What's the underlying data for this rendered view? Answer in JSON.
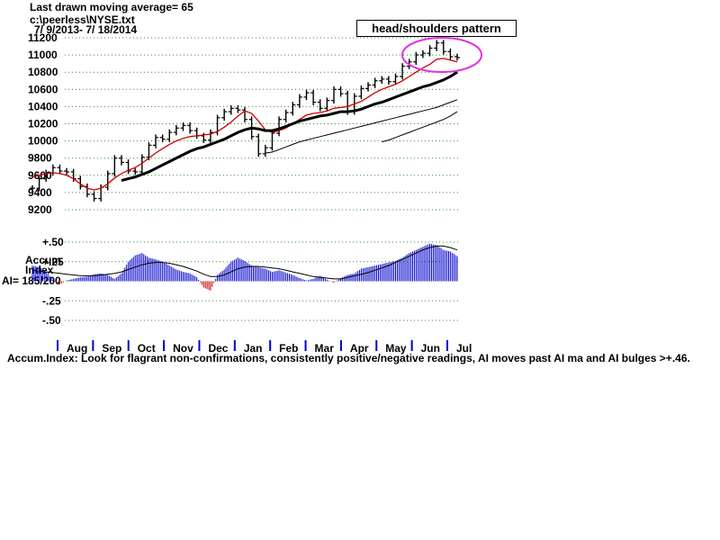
{
  "header": {
    "line1": "Last drawn moving average= 65",
    "line2": "c:\\peerless\\NYSE.txt",
    "line3": "7/ 9/2013- 7/ 18/2014"
  },
  "annotation": {
    "label": "head/shoulders pattern"
  },
  "footer": {
    "text": "Accum.Index: Look for flagrant non-confirmations, consistently positive/negative readings, AI moves past AI ma and AI bulges >+.46."
  },
  "price_chart": {
    "y_ticks": [
      "11200",
      "11000",
      "10800",
      "10600",
      "10400",
      "10200",
      "10000",
      "9800",
      "9600",
      "9400",
      "9200"
    ]
  },
  "accum_panel": {
    "label_line1": "Accum",
    "label_line2": "Index",
    "label_line3": "AI= 185/200",
    "y_ticks": [
      "+.50",
      "+.25",
      "-.25",
      "-.50"
    ]
  },
  "months": [
    "Aug",
    "Sep",
    "Oct",
    "Nov",
    "Dec",
    "Jan",
    "Feb",
    "Mar",
    "Apr",
    "May",
    "Jun",
    "Jul"
  ],
  "colors": {
    "price_bars": "#000000",
    "ma_short": "#cc0000",
    "ma_long": "#000000",
    "grid": "#2f8f2f",
    "accum_positive": "#0000cc",
    "accum_negative": "#cc0000",
    "highlight_ellipse": "#dd33dd"
  },
  "chart_data": [
    {
      "type": "line",
      "title": "",
      "ylim": [
        9200,
        11200
      ],
      "x_months": [
        "Aug",
        "Sep",
        "Oct",
        "Nov",
        "Dec",
        "Jan",
        "Feb",
        "Mar",
        "Apr",
        "May",
        "Jun",
        "Jul"
      ],
      "series": [
        {
          "values_by_week": [
            9450,
            9560,
            9630,
            9690,
            9650,
            9640,
            9560,
            9470,
            9380,
            9330,
            9460,
            9620,
            9800,
            9750,
            9650,
            9640,
            9810,
            9950,
            10040,
            10020,
            10100,
            10150,
            10180,
            10120,
            10060,
            10010,
            10100,
            10270,
            10340,
            10380,
            10360,
            10250,
            10050,
            9850,
            9920,
            10090,
            10250,
            10330,
            10420,
            10510,
            10560,
            10450,
            10380,
            10470,
            10600,
            10550,
            10340,
            10520,
            10610,
            10650,
            10700,
            10720,
            10690,
            10750,
            10870,
            10920,
            11000,
            11020,
            11080,
            11140,
            11040,
            10980,
            10970
          ]
        },
        {
          "values_by_week": [
            9580,
            9600,
            9620,
            9630,
            9620,
            9600,
            9560,
            9500,
            9450,
            9430,
            9450,
            9500,
            9570,
            9620,
            9660,
            9690,
            9740,
            9800,
            9860,
            9910,
            9960,
            10000,
            10030,
            10050,
            10060,
            10070,
            10080,
            10110,
            10160,
            10220,
            10290,
            10350,
            10320,
            10230,
            10130,
            10100,
            10120,
            10150,
            10200,
            10250,
            10300,
            10320,
            10330,
            10350,
            10380,
            10390,
            10400,
            10430,
            10460,
            10510,
            10560,
            10600,
            10630,
            10660,
            10700,
            10750,
            10800,
            10850,
            10890,
            10950,
            10960,
            10940,
            10920
          ]
        },
        {
          "values_by_week": [
            null,
            null,
            null,
            null,
            null,
            null,
            null,
            null,
            null,
            null,
            null,
            null,
            null,
            9540,
            9560,
            9580,
            9610,
            9640,
            9680,
            9720,
            9760,
            9800,
            9840,
            9880,
            9910,
            9930,
            9960,
            9990,
            10020,
            10060,
            10100,
            10130,
            10150,
            10140,
            10120,
            10120,
            10140,
            10170,
            10200,
            10230,
            10250,
            10270,
            10290,
            10300,
            10320,
            10340,
            10340,
            10350,
            10370,
            10400,
            10430,
            10450,
            10480,
            10510,
            10540,
            10570,
            10600,
            10630,
            10650,
            10680,
            10710,
            10750,
            10800
          ]
        },
        {
          "values_by_week": [
            null,
            null,
            null,
            null,
            null,
            null,
            null,
            null,
            null,
            null,
            null,
            null,
            null,
            null,
            null,
            null,
            null,
            null,
            null,
            null,
            null,
            null,
            null,
            null,
            null,
            null,
            null,
            null,
            null,
            null,
            null,
            null,
            null,
            null,
            9860,
            9870,
            9900,
            9930,
            9960,
            9990,
            10010,
            10030,
            10050,
            10070,
            10090,
            10110,
            10130,
            10150,
            10170,
            10190,
            10210,
            10230,
            10250,
            10270,
            10290,
            10310,
            10330,
            10350,
            10370,
            10390,
            10420,
            10450,
            10480
          ]
        },
        {
          "values_by_week": [
            null,
            null,
            null,
            null,
            null,
            null,
            null,
            null,
            null,
            null,
            null,
            null,
            null,
            null,
            null,
            null,
            null,
            null,
            null,
            null,
            null,
            null,
            null,
            null,
            null,
            null,
            null,
            null,
            null,
            null,
            null,
            null,
            null,
            null,
            null,
            null,
            null,
            null,
            null,
            null,
            null,
            null,
            null,
            null,
            null,
            null,
            null,
            null,
            null,
            null,
            null,
            9990,
            10010,
            10040,
            10070,
            10100,
            10130,
            10160,
            10190,
            10220,
            10250,
            10290,
            10340
          ]
        }
      ]
    },
    {
      "type": "bar",
      "title": "",
      "ylim": [
        -0.5,
        0.5
      ],
      "x_months": [
        "Aug",
        "Sep",
        "Oct",
        "Nov",
        "Dec",
        "Jan",
        "Feb",
        "Mar",
        "Apr",
        "May",
        "Jun",
        "Jul"
      ],
      "series": [
        {
          "values_by_week": [
            0.2,
            0.18,
            0.12,
            0.02,
            -0.04,
            0.01,
            0.03,
            0.05,
            0.06,
            0.09,
            0.1,
            0.08,
            0.03,
            0.1,
            0.25,
            0.33,
            0.36,
            0.3,
            0.28,
            0.25,
            0.2,
            0.15,
            0.12,
            0.1,
            0.05,
            -0.08,
            -0.12,
            0.08,
            0.15,
            0.25,
            0.3,
            0.26,
            0.2,
            0.18,
            0.16,
            0.12,
            0.14,
            0.11,
            0.08,
            0.04,
            0.01,
            0.03,
            0.07,
            0.02,
            -0.02,
            0.04,
            0.08,
            0.1,
            0.16,
            0.18,
            0.2,
            0.22,
            0.24,
            0.26,
            0.3,
            0.36,
            0.4,
            0.44,
            0.48,
            0.46,
            0.4,
            0.38,
            0.32
          ]
        },
        {
          "values_by_week": [
            0.14,
            0.13,
            0.12,
            0.11,
            0.1,
            0.09,
            0.08,
            0.07,
            0.07,
            0.07,
            0.08,
            0.09,
            0.1,
            0.12,
            0.15,
            0.18,
            0.21,
            0.23,
            0.24,
            0.24,
            0.23,
            0.21,
            0.19,
            0.16,
            0.13,
            0.09,
            0.06,
            0.06,
            0.08,
            0.12,
            0.16,
            0.18,
            0.19,
            0.19,
            0.18,
            0.17,
            0.16,
            0.14,
            0.12,
            0.1,
            0.08,
            0.06,
            0.05,
            0.04,
            0.03,
            0.03,
            0.05,
            0.07,
            0.09,
            0.11,
            0.14,
            0.17,
            0.2,
            0.24,
            0.28,
            0.32,
            0.36,
            0.4,
            0.43,
            0.45,
            0.45,
            0.43,
            0.4
          ]
        }
      ]
    }
  ]
}
